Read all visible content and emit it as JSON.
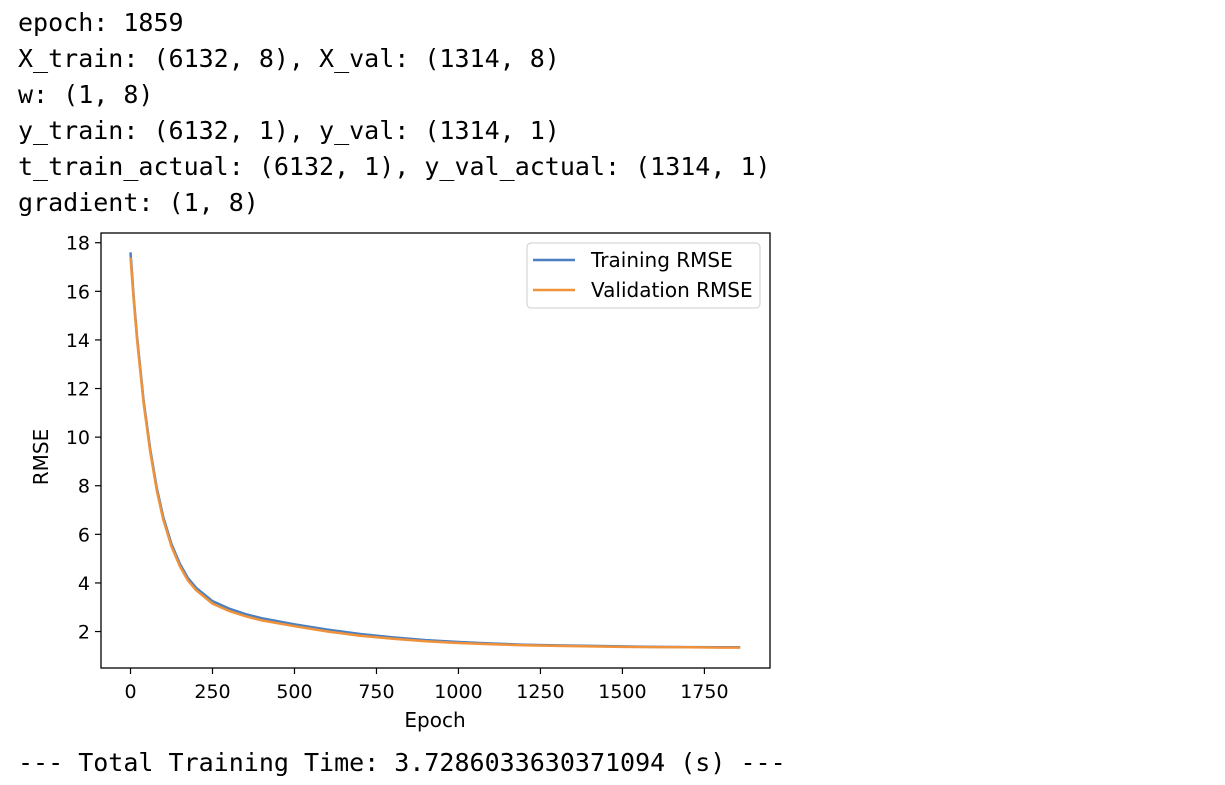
{
  "output_lines": [
    "epoch: 1859",
    "X_train: (6132, 8), X_val: (1314, 8)",
    "w: (1, 8)",
    "y_train: (6132, 1), y_val: (1314, 1)",
    "t_train_actual: (6132, 1), y_val_actual: (1314, 1)",
    "gradient: (1, 8)"
  ],
  "footer_text": "--- Total Training Time: 3.7286033630371094 (s) ---",
  "chart_data": {
    "type": "line",
    "xlabel": "Epoch",
    "ylabel": "RMSE",
    "xlim": [
      -90,
      1950
    ],
    "ylim": [
      0.5,
      18.4
    ],
    "xticks": [
      0,
      250,
      500,
      750,
      1000,
      1250,
      1500,
      1750
    ],
    "yticks": [
      2,
      4,
      6,
      8,
      10,
      12,
      14,
      16,
      18
    ],
    "legend_position": "top-right",
    "grid": false,
    "series": [
      {
        "name": "Training RMSE",
        "color": "#4a7fc1",
        "x": [
          0,
          10,
          20,
          40,
          60,
          80,
          100,
          125,
          150,
          175,
          200,
          250,
          300,
          350,
          400,
          500,
          600,
          700,
          800,
          900,
          1000,
          1100,
          1200,
          1300,
          1400,
          1500,
          1600,
          1700,
          1800,
          1859
        ],
        "y": [
          17.6,
          15.7,
          14.1,
          11.5,
          9.5,
          7.9,
          6.7,
          5.6,
          4.8,
          4.2,
          3.8,
          3.25,
          2.95,
          2.72,
          2.55,
          2.3,
          2.08,
          1.9,
          1.76,
          1.65,
          1.57,
          1.51,
          1.46,
          1.43,
          1.41,
          1.39,
          1.37,
          1.36,
          1.35,
          1.35
        ]
      },
      {
        "name": "Validation RMSE",
        "color": "#f0923b",
        "x": [
          0,
          10,
          20,
          40,
          60,
          80,
          100,
          125,
          150,
          175,
          200,
          250,
          300,
          350,
          400,
          500,
          600,
          700,
          800,
          900,
          1000,
          1100,
          1200,
          1300,
          1400,
          1500,
          1600,
          1700,
          1800,
          1859
        ],
        "y": [
          17.4,
          15.6,
          14.0,
          11.4,
          9.4,
          7.8,
          6.6,
          5.5,
          4.7,
          4.1,
          3.7,
          3.15,
          2.85,
          2.63,
          2.46,
          2.22,
          2.0,
          1.83,
          1.7,
          1.6,
          1.53,
          1.48,
          1.44,
          1.41,
          1.39,
          1.37,
          1.36,
          1.35,
          1.34,
          1.34
        ]
      }
    ]
  }
}
